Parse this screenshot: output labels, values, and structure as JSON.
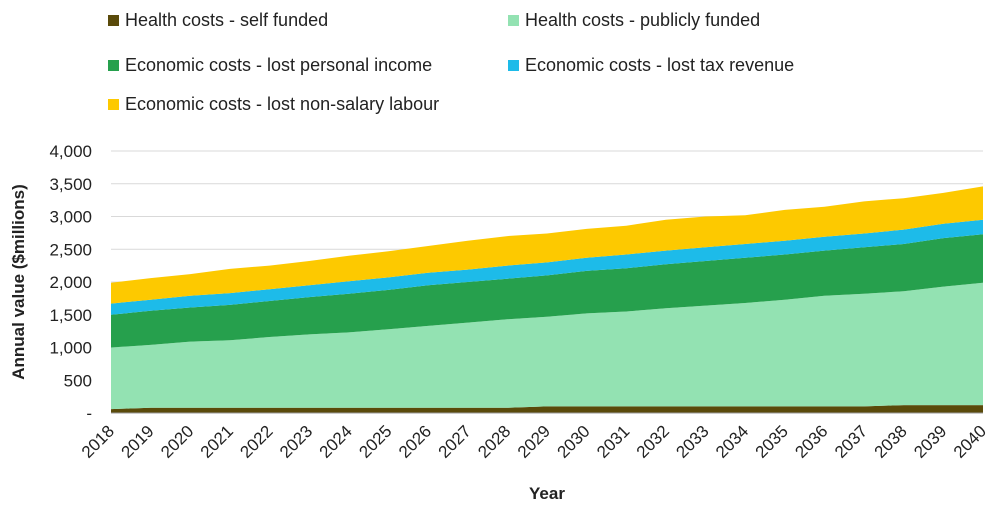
{
  "chart_data": {
    "type": "area",
    "stacked": true,
    "xlabel": "Year",
    "ylabel": "Annual value ($millions)",
    "ylim": [
      0,
      4000
    ],
    "y_ticks": [
      0,
      500,
      1000,
      1500,
      2000,
      2500,
      3000,
      3500,
      4000
    ],
    "y_tick_labels": [
      "-",
      "500",
      "1,000",
      "1,500",
      "2,000",
      "2,500",
      "3,000",
      "3,500",
      "4,000"
    ],
    "grid": "horizontal",
    "legend_position": "top",
    "x": [
      "2018",
      "2019",
      "2020",
      "2021",
      "2022",
      "2023",
      "2024",
      "2025",
      "2026",
      "2027",
      "2028",
      "2029",
      "2030",
      "2031",
      "2032",
      "2033",
      "2034",
      "2035",
      "2036",
      "2037",
      "2038",
      "2039",
      "2040"
    ],
    "series": [
      {
        "name": "Health costs - self funded",
        "color": "#5a4a0a",
        "values": [
          60,
          80,
          80,
          80,
          80,
          80,
          80,
          80,
          80,
          80,
          80,
          100,
          100,
          100,
          100,
          100,
          100,
          100,
          100,
          100,
          120,
          120,
          120
        ]
      },
      {
        "name": "Health costs - publicly funded",
        "color": "#93e2b2",
        "values": [
          940,
          960,
          1010,
          1030,
          1080,
          1120,
          1150,
          1200,
          1250,
          1300,
          1350,
          1370,
          1420,
          1450,
          1500,
          1540,
          1580,
          1630,
          1690,
          1720,
          1740,
          1810,
          1870
        ]
      },
      {
        "name": "Economic costs - lost personal income",
        "color": "#26a04d",
        "values": [
          500,
          520,
          520,
          540,
          550,
          570,
          590,
          600,
          620,
          620,
          620,
          630,
          650,
          660,
          670,
          680,
          690,
          690,
          690,
          710,
          720,
          740,
          740
        ]
      },
      {
        "name": "Economic costs - lost tax revenue",
        "color": "#1dbbe9",
        "values": [
          170,
          170,
          180,
          180,
          180,
          180,
          190,
          190,
          190,
          190,
          200,
          200,
          200,
          210,
          210,
          210,
          210,
          210,
          210,
          210,
          220,
          220,
          220
        ]
      },
      {
        "name": "Economic costs - lost non-salary labour",
        "color": "#fdc900",
        "values": [
          320,
          330,
          330,
          370,
          360,
          370,
          390,
          400,
          410,
          440,
          450,
          440,
          440,
          440,
          470,
          470,
          440,
          470,
          460,
          490,
          480,
          470,
          510
        ]
      }
    ]
  }
}
